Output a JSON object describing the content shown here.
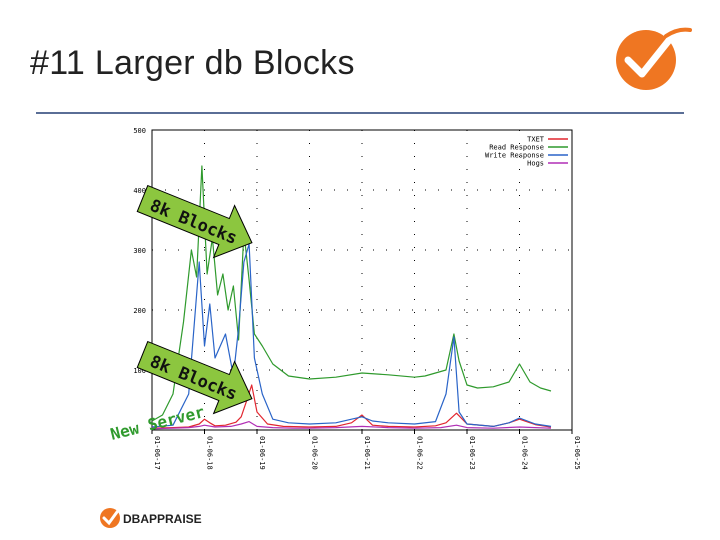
{
  "slide": {
    "title": "#11  Larger db Blocks",
    "footer_logo_text": "DBAPPRAISE",
    "accent_color": "#ef7622",
    "rule_color": "#5a6e96"
  },
  "chart_data": {
    "type": "line",
    "title": "",
    "xlabel": "",
    "ylabel": "",
    "ylim": [
      0,
      500
    ],
    "y_ticks": [
      100,
      200,
      300,
      400,
      500
    ],
    "x_ticks": [
      "01-06-17",
      "01-06-18",
      "01-06-19",
      "01-06-20",
      "01-06-21",
      "01-06-22",
      "01-06-23",
      "01-06-24",
      "01-06-25"
    ],
    "grid": true,
    "legend_position": "top-right",
    "series": [
      {
        "name": "TXET",
        "color": "#e2262f",
        "x": [
          17.0,
          17.4,
          17.7,
          17.9,
          18.0,
          18.1,
          18.2,
          18.4,
          18.6,
          18.7,
          18.8,
          18.9,
          19.0,
          19.2,
          19.5,
          20.0,
          20.5,
          20.8,
          21.0,
          21.2,
          21.5,
          22.0,
          22.4,
          22.6,
          22.8,
          23.0,
          23.5,
          23.8,
          24.0,
          24.3,
          24.6
        ],
        "y": [
          3,
          4,
          5,
          10,
          18,
          12,
          7,
          8,
          13,
          22,
          48,
          75,
          30,
          10,
          6,
          5,
          6,
          12,
          25,
          8,
          6,
          5,
          7,
          12,
          28,
          10,
          6,
          12,
          18,
          9,
          5
        ]
      },
      {
        "name": "Read Response",
        "color": "#2f9a2d",
        "x": [
          17.0,
          17.2,
          17.4,
          17.6,
          17.75,
          17.85,
          17.95,
          18.05,
          18.15,
          18.25,
          18.35,
          18.45,
          18.55,
          18.65,
          18.75,
          18.85,
          18.95,
          19.1,
          19.3,
          19.6,
          20.0,
          20.5,
          21.0,
          21.5,
          22.0,
          22.2,
          22.4,
          22.6,
          22.75,
          22.85,
          23.0,
          23.2,
          23.5,
          23.8,
          24.0,
          24.2,
          24.4,
          24.6
        ],
        "y": [
          15,
          25,
          60,
          180,
          300,
          255,
          440,
          260,
          320,
          225,
          260,
          200,
          240,
          150,
          330,
          250,
          160,
          140,
          110,
          90,
          85,
          88,
          95,
          92,
          88,
          90,
          95,
          100,
          160,
          115,
          75,
          70,
          72,
          80,
          110,
          80,
          70,
          65
        ]
      },
      {
        "name": "Write Response",
        "color": "#2a64c8",
        "x": [
          17.0,
          17.4,
          17.7,
          17.9,
          18.0,
          18.1,
          18.2,
          18.4,
          18.55,
          18.65,
          18.75,
          18.85,
          18.95,
          19.1,
          19.3,
          19.6,
          20.0,
          20.5,
          20.8,
          21.0,
          21.2,
          21.5,
          22.0,
          22.4,
          22.6,
          22.75,
          22.85,
          23.0,
          23.5,
          23.8,
          24.0,
          24.3,
          24.6
        ],
        "y": [
          5,
          8,
          60,
          280,
          140,
          210,
          120,
          160,
          90,
          170,
          280,
          310,
          120,
          60,
          18,
          12,
          10,
          12,
          18,
          22,
          15,
          12,
          10,
          14,
          60,
          155,
          30,
          10,
          6,
          12,
          20,
          10,
          6
        ]
      },
      {
        "name": "Hogs",
        "color": "#b12fb5",
        "x": [
          17.0,
          17.4,
          17.7,
          17.9,
          18.0,
          18.2,
          18.5,
          18.7,
          18.85,
          19.0,
          19.3,
          19.7,
          20.0,
          20.5,
          21.0,
          21.5,
          22.0,
          22.5,
          22.8,
          23.0,
          23.5,
          24.0,
          24.3,
          24.6
        ],
        "y": [
          2,
          3,
          4,
          6,
          8,
          5,
          6,
          10,
          14,
          6,
          4,
          3,
          3,
          4,
          6,
          4,
          3,
          4,
          8,
          4,
          3,
          5,
          4,
          3
        ]
      }
    ],
    "annotations": [
      {
        "text": "8k Blocks",
        "type": "arrow"
      },
      {
        "text": "8k Blocks",
        "type": "arrow"
      },
      {
        "text": "New Server",
        "type": "label"
      }
    ]
  }
}
